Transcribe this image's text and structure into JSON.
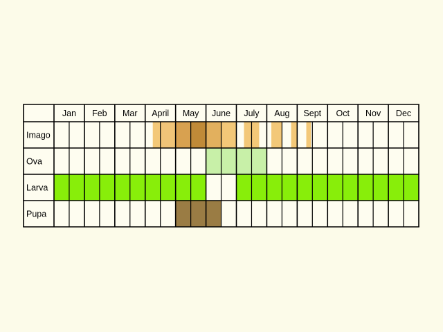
{
  "chart_data": {
    "type": "table",
    "months": [
      "Jan",
      "Feb",
      "Mar",
      "April",
      "May",
      "June",
      "July",
      "Aug",
      "Sept",
      "Oct",
      "Nov",
      "Dec"
    ],
    "subdivisions_per_month": 2,
    "stages": [
      {
        "label": "Imago",
        "segments": [
          {
            "start_half": 6.5,
            "end_half": 7,
            "color": "#f3c878"
          },
          {
            "start_half": 7,
            "end_half": 8,
            "color": "#f0c478"
          },
          {
            "start_half": 8,
            "end_half": 9,
            "color": "#d8a150"
          },
          {
            "start_half": 9,
            "end_half": 10,
            "color": "#c08a38"
          },
          {
            "start_half": 10,
            "end_half": 11,
            "color": "#e2b05e"
          },
          {
            "start_half": 11,
            "end_half": 12,
            "color": "#f3c878"
          },
          {
            "start_half": 12.5,
            "end_half": 13.5,
            "color": "#f3c878"
          },
          {
            "start_half": 14.3,
            "end_half": 15,
            "color": "#f3c878"
          },
          {
            "start_half": 15.6,
            "end_half": 16,
            "color": "#f3c878"
          },
          {
            "start_half": 16.6,
            "end_half": 16.9,
            "color": "#f3c878"
          }
        ]
      },
      {
        "label": "Ova",
        "segments": [
          {
            "start_half": 10,
            "end_half": 14,
            "color": "#c8f0a8"
          }
        ]
      },
      {
        "label": "Larva",
        "segments": [
          {
            "start_half": 0,
            "end_half": 10,
            "color": "#88ee0a"
          },
          {
            "start_half": 12,
            "end_half": 24,
            "color": "#88ee0a"
          }
        ]
      },
      {
        "label": "Pupa",
        "segments": [
          {
            "start_half": 8,
            "end_half": 11,
            "color": "#9a7c44"
          }
        ]
      }
    ],
    "grid": true,
    "background_color": "#fcfbe9",
    "empty_cell_color": "#fefdf0",
    "line_color": "#000000"
  }
}
